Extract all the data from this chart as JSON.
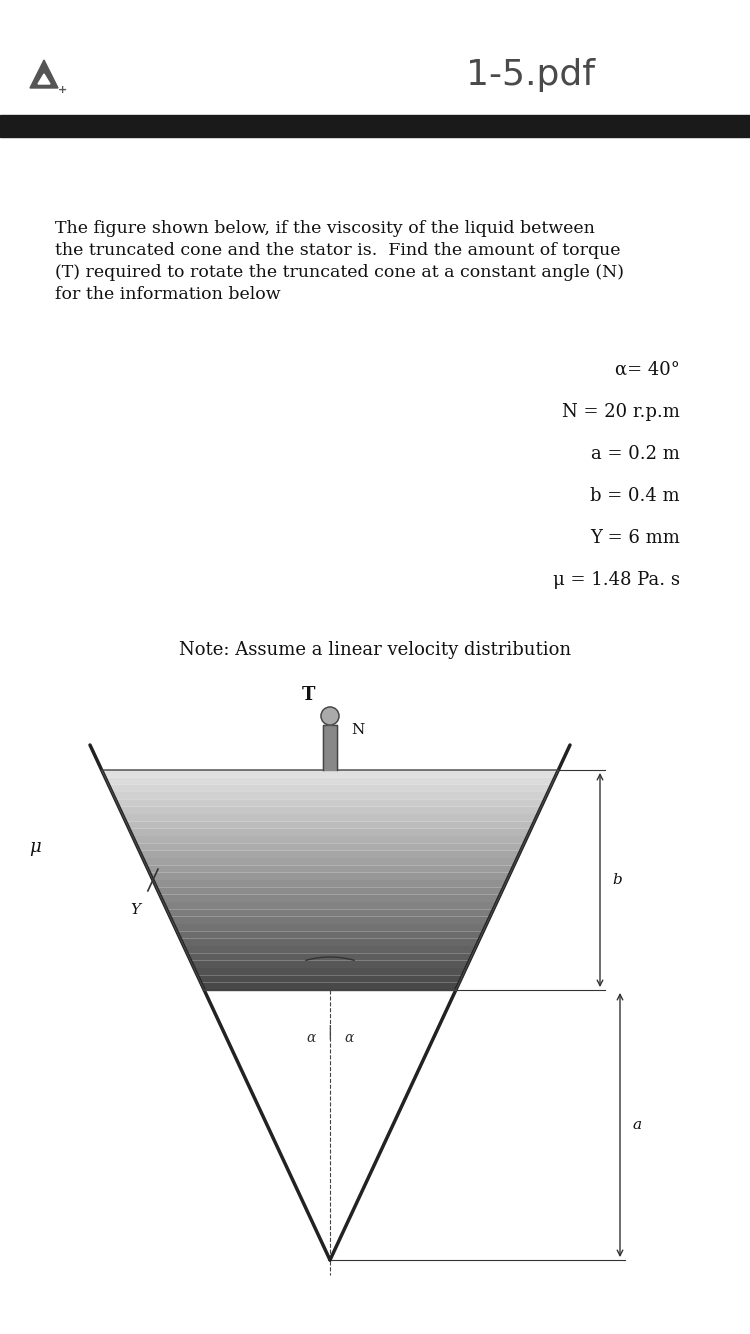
{
  "title": "1-5.pdf",
  "title_fontsize": 26,
  "title_color": "#4a4a4a",
  "header_bar_color": "#1a1a1a",
  "body_text": "The figure shown below, if the viscosity of the liquid between\nthe truncated cone and the stator is.  Find the amount of torque\n(T) required to rotate the truncated cone at a constant angle (N)\nfor the information below",
  "body_fontsize": 12.5,
  "params": [
    {
      "label": "α= 40°"
    },
    {
      "label": "N = 20 r.p.m"
    },
    {
      "label": "a = 0.2 m"
    },
    {
      "label": "b = 0.4 m"
    },
    {
      "label": "Y = 6 mm"
    },
    {
      "label": "μ = 1.48 Pa. s"
    }
  ],
  "params_fontsize": 13,
  "note_text": "Note: Assume a linear velocity distribution",
  "note_fontsize": 13,
  "bg_color": "#ffffff"
}
